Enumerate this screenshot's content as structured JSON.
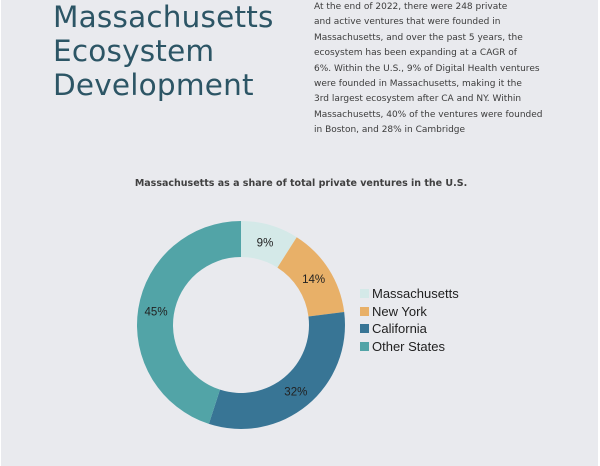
{
  "header": {
    "title_lines": [
      "Massachusetts",
      "Ecosystem",
      "Development"
    ],
    "intro_lines": [
      "At the end of 2022, there were 248 private",
      "and active ventures that were founded in",
      "Massachusetts, and over the past 5 years, the",
      "ecosystem has been expanding at a CAGR of",
      "6%. Within the U.S., 9% of Digital Health ventures",
      "were founded in Massachusetts, making it the",
      "3rd largest ecosystem after CA and NY. Within",
      "Massachusetts, 40% of the ventures were founded",
      "in Boston, and 28% in Cambridge"
    ]
  },
  "chart_data": {
    "type": "pie",
    "subtype": "donut",
    "title": "Massachusetts as a share of total private ventures in the U.S.",
    "categories": [
      "Massachusetts",
      "New York",
      "California",
      "Other States"
    ],
    "values": [
      9,
      14,
      32,
      45
    ],
    "labels": [
      "9%",
      "14%",
      "32%",
      "45%"
    ],
    "colors": [
      "#d4e9e8",
      "#e8b068",
      "#387595",
      "#52a4a7"
    ],
    "legend_position": "right",
    "start_angle": "12 o'clock, clockwise"
  },
  "legend": {
    "items": [
      {
        "label": "Massachusetts",
        "color": "#d4e9e8"
      },
      {
        "label": "New York",
        "color": "#e8b068"
      },
      {
        "label": "California",
        "color": "#387595"
      },
      {
        "label": "Other States",
        "color": "#52a4a7"
      }
    ]
  }
}
